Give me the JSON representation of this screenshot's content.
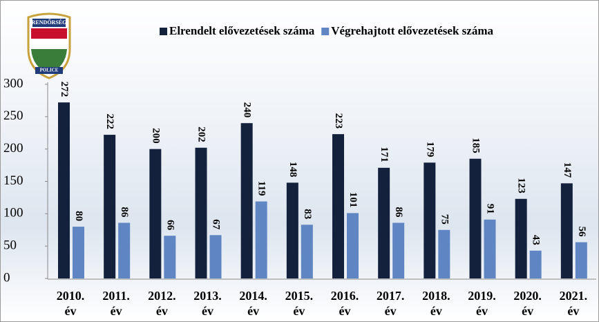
{
  "logo": {
    "top": "RENDŐRSÉG",
    "bottom": "POLICE"
  },
  "chart_data": {
    "type": "bar",
    "categories": [
      "2010.\név",
      "2011.\név",
      "2012.\név",
      "2013.\név",
      "2014.\név",
      "2015.\név",
      "2016.\név",
      "2017.\név",
      "2018.\név",
      "2019.\név",
      "2020.\név",
      "2021.\név"
    ],
    "series": [
      {
        "name": "Elrendelt elővezetések száma",
        "color": "#14213d",
        "values": [
          272,
          222,
          200,
          202,
          240,
          148,
          223,
          171,
          179,
          185,
          123,
          147
        ]
      },
      {
        "name": "Végrehajtott elővezetések száma",
        "color": "#5f86c2",
        "values": [
          80,
          86,
          66,
          67,
          119,
          83,
          101,
          86,
          75,
          91,
          43,
          56
        ]
      }
    ],
    "ylim": [
      0,
      300
    ],
    "yticks": [
      0,
      50,
      100,
      150,
      200,
      250,
      300
    ],
    "legend": "top-right"
  }
}
